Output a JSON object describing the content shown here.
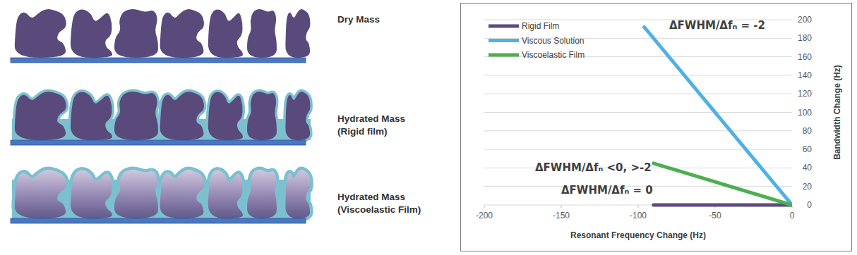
{
  "diagram": {
    "panels": [
      {
        "label": [
          "Dry Mass"
        ]
      },
      {
        "label": [
          "Hydrated Mass",
          "(Rigid film)"
        ]
      },
      {
        "label": [
          "Hydrated Mass",
          "(Viscoelastic Film)"
        ]
      }
    ]
  },
  "chart_data": {
    "type": "line",
    "x_label": "Resonant Frequency Change (Hz)",
    "y_label": "Bandwidth Change (Hz)",
    "xlim": [
      -200,
      0
    ],
    "xticks": [
      -200,
      -150,
      -100,
      -50,
      0
    ],
    "ylim": [
      0,
      200
    ],
    "yticks": [
      0,
      20,
      40,
      60,
      80,
      100,
      120,
      140,
      160,
      180,
      200
    ],
    "grid": true,
    "legend": "upper left",
    "annotations": [
      "ΔFWHM/Δfₙ = -2",
      "ΔFWHM/Δfₙ <0, >-2",
      "ΔFWHM/Δfₙ = 0"
    ],
    "series": [
      {
        "name": "Rigid Film",
        "color": "#5c4c7e",
        "x": [
          -90,
          0
        ],
        "values": [
          0,
          0
        ]
      },
      {
        "name": "Viscous Solution",
        "color": "#4fb0e6",
        "x": [
          -96,
          0
        ],
        "values": [
          192,
          0
        ]
      },
      {
        "name": "Viscoelastic Film",
        "color": "#4caf50",
        "x": [
          -90,
          0
        ],
        "values": [
          45,
          0
        ]
      }
    ]
  }
}
